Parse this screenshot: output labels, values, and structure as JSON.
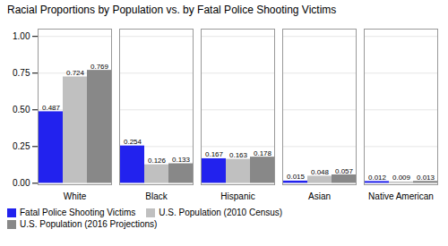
{
  "chart_data": {
    "type": "bar",
    "title": "Racial Proportions by Population vs. by Fatal Police Shooting Victims",
    "categories": [
      "White",
      "Black",
      "Hispanic",
      "Asian",
      "Native American"
    ],
    "series": [
      {
        "name": "Fatal Police Shooting Victims",
        "color": "#2222EE",
        "values": [
          0.487,
          0.254,
          0.167,
          0.015,
          0.012
        ]
      },
      {
        "name": "U.S. Population (2010 Census)",
        "color": "#C0C0C0",
        "values": [
          0.724,
          0.126,
          0.163,
          0.048,
          0.009
        ]
      },
      {
        "name": "U.S. Population (2016 Projections)",
        "color": "#888888",
        "values": [
          0.769,
          0.133,
          0.178,
          0.057,
          0.013
        ]
      }
    ],
    "ylim": [
      -0.01,
      1.05
    ],
    "yticks": [
      {
        "value": 0.0,
        "label": "0.00"
      },
      {
        "value": 0.25,
        "label": "0.25"
      },
      {
        "value": 0.5,
        "label": "0.50"
      },
      {
        "value": 0.75,
        "label": "0.75"
      },
      {
        "value": 1.0,
        "label": "1.00"
      }
    ],
    "grid": true,
    "legend": "bottom",
    "data_labels": true
  }
}
